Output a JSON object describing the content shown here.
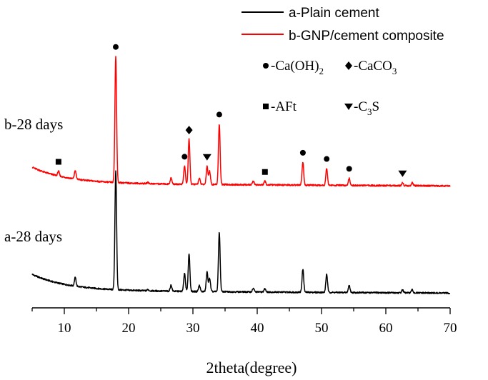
{
  "chart_data": {
    "type": "line",
    "xlabel": "2theta(degree)",
    "xlim": [
      5,
      70
    ],
    "x_ticks": [
      10,
      20,
      30,
      40,
      50,
      60,
      70
    ],
    "y_axis_shown": false,
    "grid": false,
    "legend_position": "top-right",
    "series": [
      {
        "name": "a-Plain cement",
        "label": "a-28 days",
        "color": "#000000",
        "peaks": [
          {
            "x": 11.7,
            "y": 0.14
          },
          {
            "x": 18.0,
            "y": 1.96
          },
          {
            "x": 23.0,
            "y": 0.02
          },
          {
            "x": 26.6,
            "y": 0.1
          },
          {
            "x": 28.7,
            "y": 0.3
          },
          {
            "x": 29.4,
            "y": 0.62
          },
          {
            "x": 31.0,
            "y": 0.1
          },
          {
            "x": 32.2,
            "y": 0.32
          },
          {
            "x": 32.6,
            "y": 0.22
          },
          {
            "x": 34.1,
            "y": 0.98
          },
          {
            "x": 39.4,
            "y": 0.06
          },
          {
            "x": 41.2,
            "y": 0.06
          },
          {
            "x": 47.1,
            "y": 0.38
          },
          {
            "x": 50.8,
            "y": 0.3
          },
          {
            "x": 54.3,
            "y": 0.12
          },
          {
            "x": 62.6,
            "y": 0.05
          },
          {
            "x": 64.1,
            "y": 0.05
          }
        ]
      },
      {
        "name": "b-GNP/cement composite",
        "label": "b-28 days",
        "color": "#ff0000",
        "peaks": [
          {
            "x": 9.1,
            "y": 0.08
          },
          {
            "x": 11.7,
            "y": 0.14
          },
          {
            "x": 18.0,
            "y": 2.08
          },
          {
            "x": 23.0,
            "y": 0.02
          },
          {
            "x": 26.6,
            "y": 0.1
          },
          {
            "x": 28.7,
            "y": 0.3
          },
          {
            "x": 29.4,
            "y": 0.74
          },
          {
            "x": 31.0,
            "y": 0.1
          },
          {
            "x": 32.2,
            "y": 0.3
          },
          {
            "x": 32.6,
            "y": 0.22
          },
          {
            "x": 34.1,
            "y": 1.0
          },
          {
            "x": 39.4,
            "y": 0.06
          },
          {
            "x": 41.2,
            "y": 0.06
          },
          {
            "x": 47.1,
            "y": 0.38
          },
          {
            "x": 50.8,
            "y": 0.28
          },
          {
            "x": 54.3,
            "y": 0.12
          },
          {
            "x": 62.6,
            "y": 0.05
          },
          {
            "x": 64.1,
            "y": 0.05
          }
        ]
      }
    ],
    "phase_legend": [
      {
        "symbol": "circle",
        "prefix": "-Ca(OH)",
        "sub": "2",
        "suffix": ""
      },
      {
        "symbol": "diamond",
        "prefix": "-CaCO",
        "sub": "3",
        "suffix": ""
      },
      {
        "symbol": "square",
        "prefix": "-AFt",
        "sub": "",
        "suffix": ""
      },
      {
        "symbol": "triangle-down",
        "prefix": "-C",
        "sub": "3",
        "suffix": "S"
      }
    ],
    "peak_markers": [
      {
        "symbol": "square",
        "x": 9.1
      },
      {
        "symbol": "circle",
        "x": 18.0
      },
      {
        "symbol": "circle",
        "x": 28.7
      },
      {
        "symbol": "diamond",
        "x": 29.4
      },
      {
        "symbol": "triangle-down",
        "x": 32.2
      },
      {
        "symbol": "circle",
        "x": 34.1
      },
      {
        "symbol": "square",
        "x": 41.2
      },
      {
        "symbol": "circle",
        "x": 47.1
      },
      {
        "symbol": "circle",
        "x": 50.8
      },
      {
        "symbol": "circle",
        "x": 54.3
      },
      {
        "symbol": "triangle-down",
        "x": 62.6
      }
    ]
  }
}
